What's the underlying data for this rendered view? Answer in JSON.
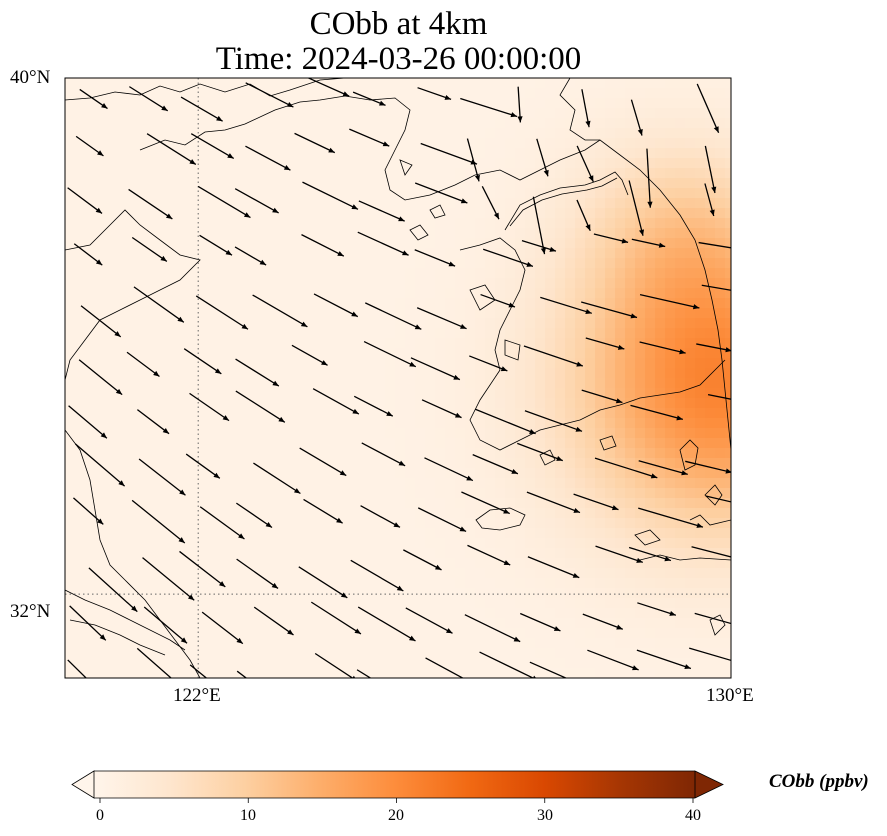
{
  "title": {
    "line1": "CObb at 4km",
    "line2": "Time: 2024-03-26 00:00:00"
  },
  "map": {
    "lat_range": [
      30.7,
      40.0
    ],
    "lon_range": [
      120.0,
      130.0
    ],
    "lat_labels": [
      "40°N",
      "32°N"
    ],
    "lon_labels": [
      "122°E",
      "130°E"
    ],
    "gridlines": {
      "lat": [
        32
      ],
      "lon": [
        122
      ],
      "style": "dotted"
    },
    "variable": "CObb",
    "field": {
      "background_ppbv": 1,
      "plumes": [
        {
          "lon": 129.8,
          "lat": 35.2,
          "peak_ppbv": 20,
          "radius_deg": 2.2
        },
        {
          "lon": 129.2,
          "lat": 37.6,
          "peak_ppbv": 7,
          "radius_deg": 1.5
        }
      ]
    }
  },
  "colorbar": {
    "title": "CObb (ppbv)",
    "min": 0,
    "max": 40,
    "ticks": [
      "0",
      "10",
      "20",
      "30",
      "40"
    ],
    "colors": [
      "#fff5eb",
      "#fee6ce",
      "#fdd0a2",
      "#fdae6b",
      "#fd8d3c",
      "#f16913",
      "#d94801",
      "#a63603",
      "#7f2704"
    ]
  },
  "wind_vectors_note": "",
  "colors": {
    "land_outline": "#000000",
    "arrow": "#000000",
    "background": "#fff3e3"
  }
}
